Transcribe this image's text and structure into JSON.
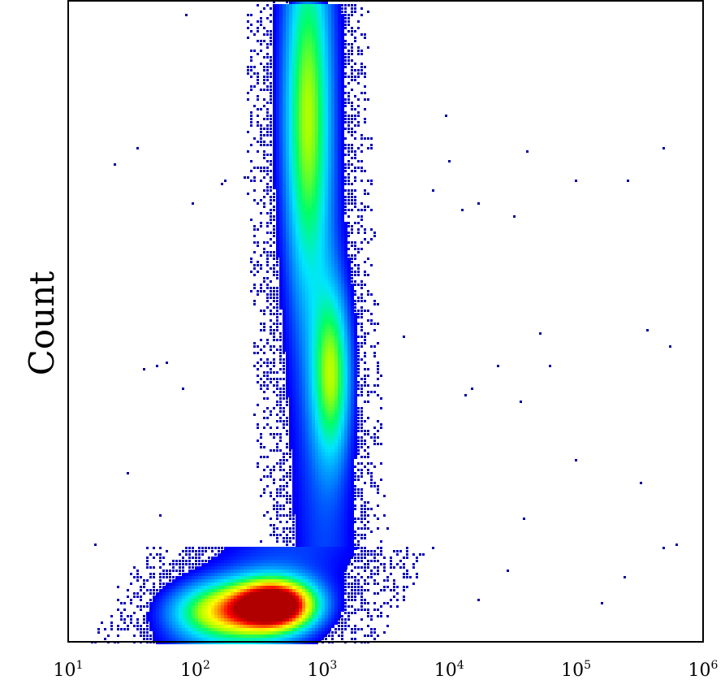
{
  "chart_data": {
    "type": "heatmap",
    "title": "",
    "xlabel": "",
    "ylabel": "Count",
    "x_scale": "log",
    "xlim": [
      10,
      1000000
    ],
    "x_ticks": [
      {
        "value": 10,
        "base": "10",
        "exp": "1"
      },
      {
        "value": 100,
        "base": "10",
        "exp": "2"
      },
      {
        "value": 1000,
        "base": "10",
        "exp": "3"
      },
      {
        "value": 10000,
        "base": "10",
        "exp": "4"
      },
      {
        "value": 100000,
        "base": "10",
        "exp": "5"
      },
      {
        "value": 1000000,
        "base": "10",
        "exp": "6"
      }
    ],
    "grid": false,
    "legend": "none",
    "colormap": [
      "#00008b",
      "#0000ff",
      "#0080ff",
      "#00e5ff",
      "#00ff66",
      "#aaff00",
      "#ffff00",
      "#ff8800",
      "#ff0000",
      "#b00000"
    ],
    "density_clusters": [
      {
        "x": 420,
        "y": 0.06,
        "sx": 0.2,
        "sy": 0.025,
        "peak": 1.0
      },
      {
        "x": 180,
        "y": 0.05,
        "sx": 0.3,
        "sy": 0.03,
        "peak": 0.55
      },
      {
        "x": 1150,
        "y": 0.42,
        "sx": 0.1,
        "sy": 0.09,
        "peak": 0.4
      },
      {
        "x": 750,
        "y": 0.82,
        "sx": 0.12,
        "sy": 0.18,
        "peak": 0.38
      }
    ]
  }
}
